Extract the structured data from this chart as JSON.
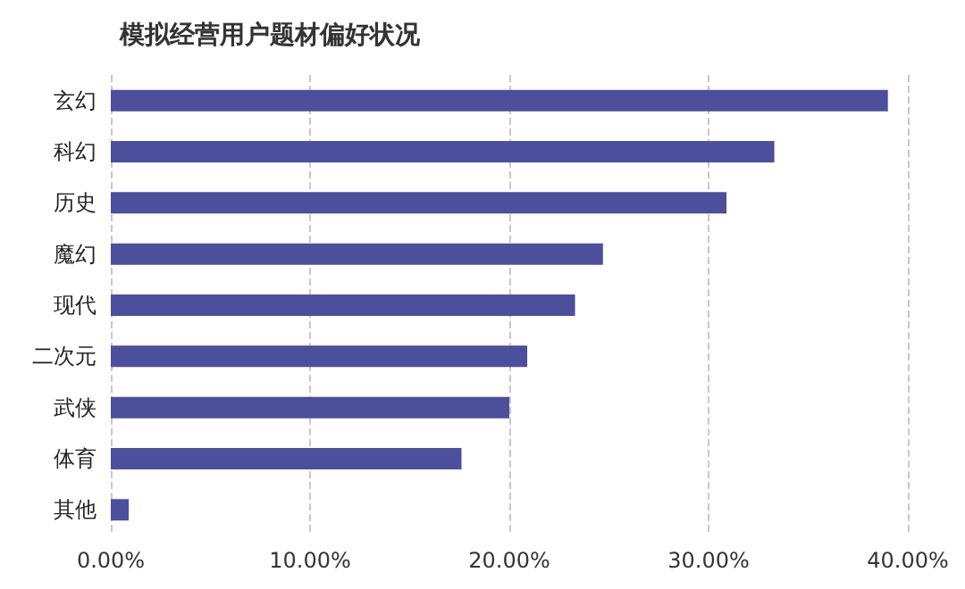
{
  "chart_data": {
    "type": "bar",
    "orientation": "horizontal",
    "title": "模拟经营用户题材偏好状况",
    "categories": [
      "玄幻",
      "科幻",
      "历史",
      "魔幻",
      "现代",
      "二次元",
      "武侠",
      "体育",
      "其他"
    ],
    "values": [
      39.0,
      33.3,
      30.9,
      24.7,
      23.3,
      20.9,
      20.0,
      17.6,
      0.9
    ],
    "color": "#4b4f9c",
    "xlim": [
      0,
      40
    ],
    "xticks": [
      {
        "value": 0,
        "label": "0.00%"
      },
      {
        "value": 10,
        "label": "10.00%"
      },
      {
        "value": 20,
        "label": "20.00%"
      },
      {
        "value": 30,
        "label": "30.00%"
      },
      {
        "value": 40,
        "label": "40.00%"
      }
    ],
    "grid": "x"
  }
}
